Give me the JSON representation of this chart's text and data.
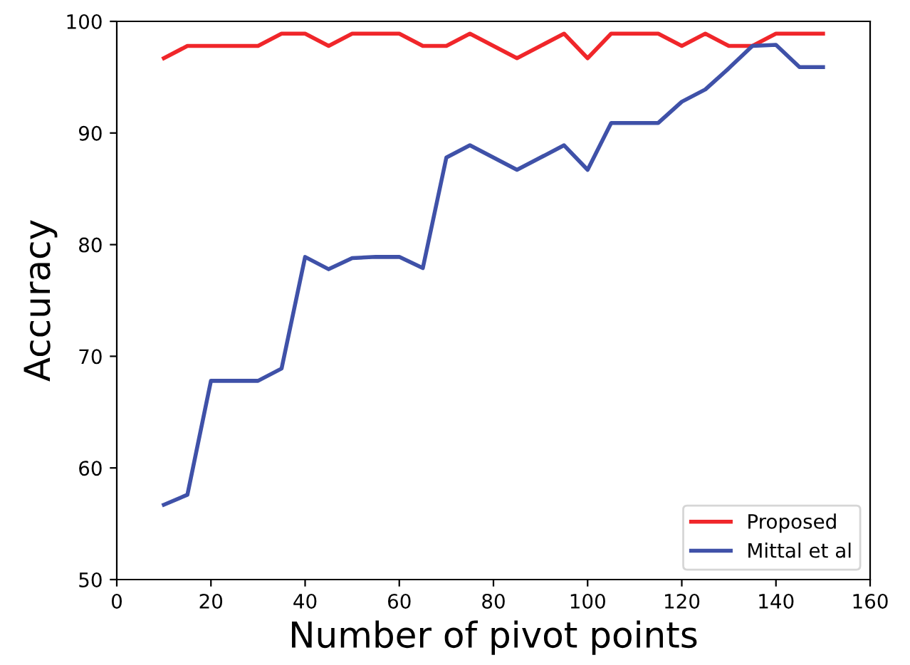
{
  "chart_data": {
    "type": "line",
    "xlabel": "Number of pivot points",
    "ylabel": "Accuracy",
    "x": [
      10,
      15,
      20,
      25,
      30,
      35,
      40,
      45,
      50,
      55,
      60,
      65,
      70,
      75,
      80,
      85,
      90,
      95,
      100,
      105,
      110,
      115,
      120,
      125,
      130,
      135,
      140,
      145,
      150
    ],
    "series": [
      {
        "name": "Proposed",
        "color": "#f0262a",
        "values": [
          96.7,
          97.8,
          97.8,
          97.8,
          97.8,
          98.9,
          98.9,
          97.8,
          98.9,
          98.9,
          98.9,
          97.8,
          97.8,
          98.9,
          97.8,
          96.7,
          97.8,
          98.9,
          96.7,
          98.9,
          98.9,
          98.9,
          97.8,
          98.9,
          97.8,
          97.8,
          98.9,
          98.9,
          98.9
        ]
      },
      {
        "name": "Mittal et al",
        "color": "#3f51a8",
        "values": [
          56.7,
          57.6,
          67.8,
          67.8,
          67.8,
          68.9,
          78.9,
          77.8,
          78.8,
          78.9,
          78.9,
          77.9,
          87.8,
          88.9,
          87.8,
          86.7,
          87.8,
          88.9,
          86.7,
          90.9,
          90.9,
          90.9,
          92.8,
          93.9,
          95.8,
          97.8,
          97.9,
          95.9,
          95.9
        ]
      }
    ],
    "xlim": [
      0,
      160
    ],
    "xticks": [
      0,
      20,
      40,
      60,
      80,
      100,
      120,
      140,
      160
    ],
    "ylim": [
      50,
      100
    ],
    "yticks": [
      50,
      60,
      70,
      80,
      90,
      100
    ],
    "grid": false,
    "legend": "bottom right",
    "marker": "none",
    "line_style": "solid"
  }
}
